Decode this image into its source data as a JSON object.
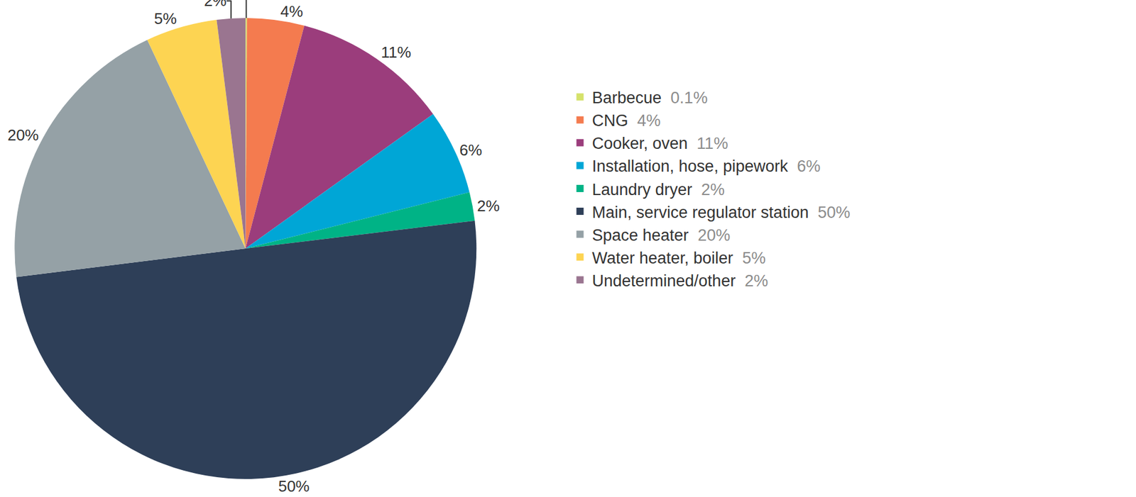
{
  "chart_data": {
    "type": "pie",
    "categories": [
      "Barbecue",
      "CNG",
      "Cooker, oven",
      "Installation, hose, pipework",
      "Laundry dryer",
      "Main, service regulator station",
      "Space heater",
      "Water heater, boiler",
      "Undetermined/other"
    ],
    "values": [
      0.1,
      4,
      11,
      6,
      2,
      50,
      20,
      5,
      2
    ],
    "value_labels": [
      "0.1%",
      "4%",
      "11%",
      "6%",
      "2%",
      "50%",
      "20%",
      "5%",
      "2%"
    ],
    "colors": [
      "#d5e26b",
      "#f47b4f",
      "#9b3d7c",
      "#00a6d6",
      "#00b386",
      "#2e3f58",
      "#95a1a6",
      "#fdd452",
      "#9a7590"
    ],
    "data_labels": true,
    "legend": "right"
  }
}
